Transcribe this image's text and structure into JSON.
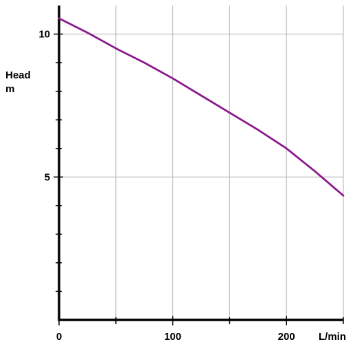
{
  "chart_data": {
    "type": "line",
    "title": "",
    "ylabel_lines": [
      "Head",
      "m"
    ],
    "xlabel": "L/min",
    "xlim": [
      0,
      250
    ],
    "ylim": [
      0,
      11
    ],
    "x_gridlines": [
      50,
      100,
      150,
      200,
      250
    ],
    "y_gridlines": [
      5,
      10
    ],
    "x_ticks_minor": [
      50,
      150,
      250
    ],
    "y_ticks_minor": [
      1,
      2,
      3,
      4,
      6,
      7,
      8,
      9
    ],
    "x_tick_labels": [
      {
        "value": 0,
        "text": "0"
      },
      {
        "value": 100,
        "text": "100"
      },
      {
        "value": 200,
        "text": "200"
      }
    ],
    "y_tick_labels": [
      {
        "value": 10,
        "text": "10"
      },
      {
        "value": 5,
        "text": "5"
      }
    ],
    "grid": true,
    "series": [
      {
        "color": "#8b1a8b",
        "x": [
          0,
          25,
          50,
          75,
          100,
          125,
          150,
          175,
          200,
          225,
          250
        ],
        "y": [
          10.55,
          10.05,
          9.5,
          9.0,
          8.45,
          7.85,
          7.25,
          6.65,
          6.0,
          5.2,
          4.35
        ]
      }
    ]
  }
}
